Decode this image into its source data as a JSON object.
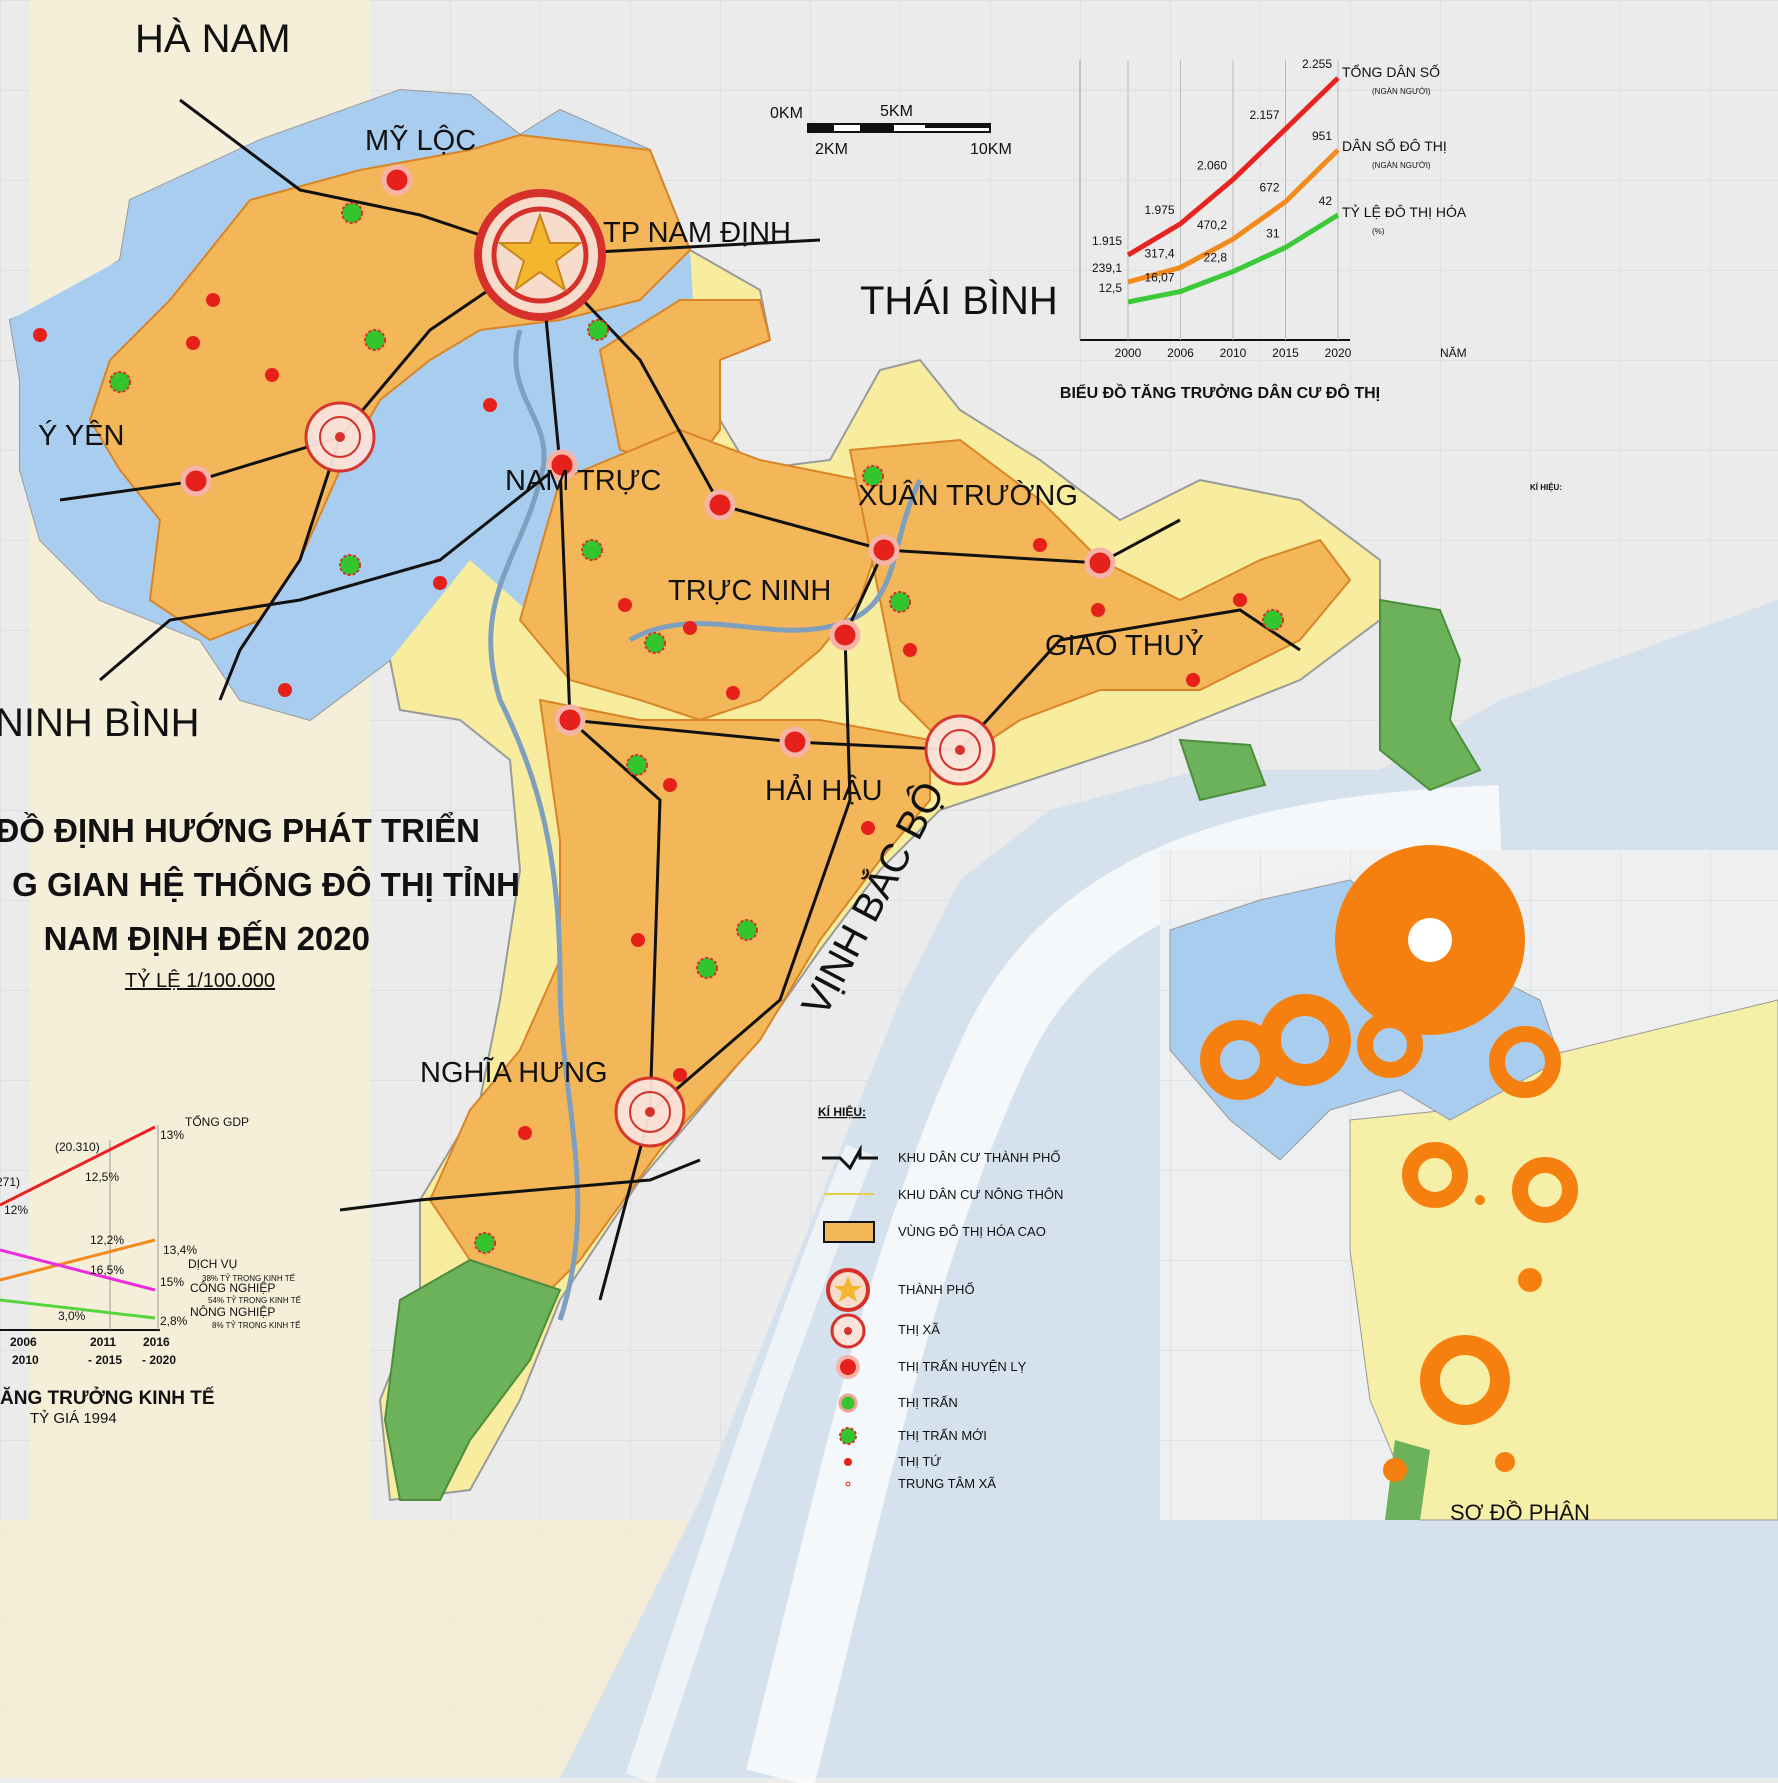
{
  "regions": [
    "HÀ NAM",
    "THÁI BÌNH",
    "NINH BÌNH",
    "VỊNH BẮC BỘ"
  ],
  "districts": [
    "MỸ LỘC",
    "TP NAM ĐỊNH",
    "Ý YÊN",
    "NAM TRỰC",
    "XUÂN TRƯỜNG",
    "TRỰC NINH",
    "GIAO THUỶ",
    "HẢI HẬU",
    "NGHĨA HƯNG"
  ],
  "title": {
    "lines": [
      "ĐỒ ĐỊNH HƯỚNG PHÁT TRIỂN",
      "G GIAN HỆ THỐNG ĐÔ THỊ TỈNH",
      "NAM ĐỊNH ĐẾN 2020"
    ],
    "scale": "TỶ LỆ 1/100.000"
  },
  "scale_bar": {
    "labels": [
      "0KM",
      "5KM",
      "2KM",
      "10KM"
    ]
  },
  "population_chart": {
    "title": "BIỂU ĐỒ TĂNG TRƯỞNG DÂN CƯ ĐÔ THỊ",
    "x": [
      "2000",
      "2006",
      "2010",
      "2015",
      "2020"
    ],
    "x_label": "NĂM",
    "series": [
      {
        "name": "TỔNG DÂN SỐ",
        "unit": "(NGÀN NGƯỜI)",
        "color": "#e8231f",
        "values": [
          1915,
          1975,
          2060,
          2157,
          2255
        ],
        "value_labels": [
          "1.915",
          "1.975",
          "2.060",
          "2.157",
          "2.255"
        ]
      },
      {
        "name": "DÂN SỐ ĐÔ THỊ",
        "unit": "(NGÀN NGƯỜI)",
        "color": "#f28a1d",
        "values": [
          239.1,
          317.4,
          470.2,
          672,
          951
        ],
        "value_labels": [
          "239,1",
          "317,4",
          "470,2",
          "672",
          "951"
        ]
      },
      {
        "name": "TỶ LỆ ĐÔ THỊ HÓA",
        "unit": "(%)",
        "color": "#3cc93a",
        "values": [
          12.5,
          16.07,
          22.8,
          31,
          42
        ],
        "value_labels": [
          "12,5",
          "16,07",
          "22,8",
          "31",
          "42"
        ]
      }
    ]
  },
  "economy_chart": {
    "title": "ĂNG TRƯỞNG KINH TẾ",
    "subtitle": "TỶ GIÁ 1994",
    "periods": [
      "2006",
      "2010",
      "2011",
      "- 2015",
      "2016",
      "- 2020"
    ],
    "gdp": {
      "name": "TỔNG GDP",
      "labels": [
        "(271)",
        "12%",
        "(20.310)",
        "12,5%",
        "13%"
      ]
    },
    "services": {
      "name": "DỊCH VỤ",
      "share": "38% TỶ TRỌNG KINH TẾ",
      "labels": [
        "12,2%",
        "13,4%"
      ]
    },
    "industry": {
      "name": "CÔNG NGHIỆP",
      "share": "54% TỶ TRỌNG KINH TẾ",
      "labels": [
        "16,5%",
        "15%"
      ]
    },
    "agriculture": {
      "name": "NÔNG NGHIỆP",
      "share": "8% TỶ TRỌNG KINH TẾ",
      "labels": [
        "3,0%",
        "2,8%"
      ]
    }
  },
  "legend": {
    "title": "KÍ HIỆU:",
    "items": [
      "KHU DÂN CƯ THÀNH PHỐ",
      "KHU DÂN CƯ NÔNG THÔN",
      "VÙNG ĐÔ THỊ HÓA CAO",
      "THÀNH PHỐ",
      "THỊ XÃ",
      "THỊ TRẤN HUYỆN LỴ",
      "THỊ TRẤN",
      "THỊ TRẤN MỚI",
      "THỊ TỨ",
      "TRUNG TÂM XÃ"
    ]
  },
  "inset": {
    "title": "SƠ ĐỒ PHÂN",
    "legend_title": "KÍ HIỆU:"
  }
}
